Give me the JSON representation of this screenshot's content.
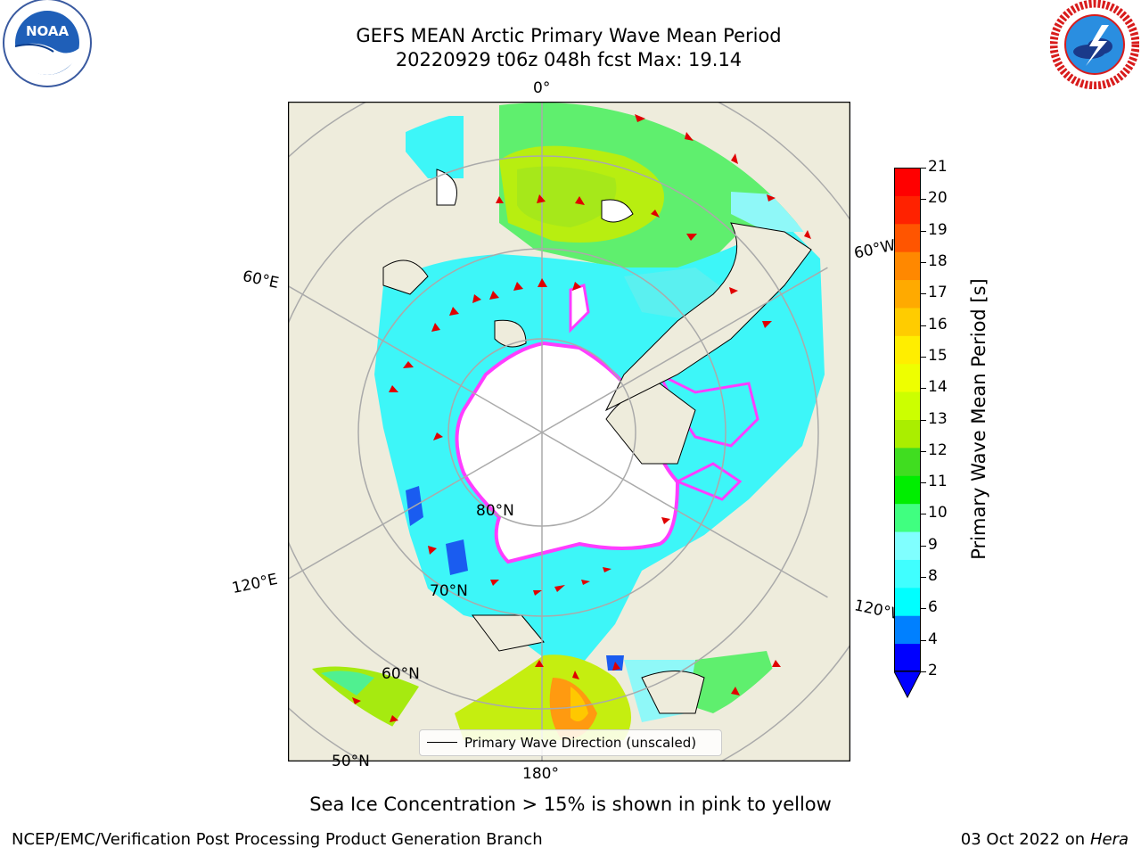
{
  "title": {
    "line1": "GEFS MEAN Arctic Primary Wave Mean Period",
    "line2": "20220929 t06z 048h fcst   Max: 19.14"
  },
  "logos": {
    "left": {
      "name": "NOAA",
      "ring_text": "NATIONAL OCEANIC AND ATMOSPHERIC ADMINISTRATION · U.S. DEPARTMENT OF COMMERCE"
    },
    "right": {
      "ring_text": "NATIONAL WEATHER SERVICE"
    }
  },
  "map": {
    "longitude_labels": [
      "0°",
      "60°W",
      "60°E",
      "120°E",
      "120°W",
      "180°"
    ],
    "latitude_labels": [
      "80°N",
      "70°N",
      "60°N",
      "50°N"
    ],
    "colors": {
      "land": "#eeecdc",
      "ice_interior": "#ffffff",
      "ice_edge": "#ff3dff",
      "arrows": "#e00000",
      "graticule": "#aaaaaa"
    }
  },
  "legend": {
    "label": "Primary Wave Direction (unscaled)"
  },
  "colorbar": {
    "label": "Primary Wave Mean Period [s]",
    "ticks": [
      "21",
      "20",
      "19",
      "18",
      "17",
      "16",
      "15",
      "14",
      "13",
      "12",
      "11",
      "10",
      "9",
      "8",
      "6",
      "4",
      "2"
    ],
    "colors": [
      "#0000ff",
      "#0080ff",
      "#00ffff",
      "#40ffff",
      "#80ffff",
      "#40ff80",
      "#00ee00",
      "#40dd20",
      "#aaee00",
      "#ccff00",
      "#eeff00",
      "#ffee00",
      "#ffcc00",
      "#ffaa00",
      "#ff8800",
      "#ff5500",
      "#ff2200",
      "#ff0000"
    ]
  },
  "note": "Sea Ice Concentration > 15% is shown in pink to yellow",
  "footer": {
    "left": "NCEP/EMC/Verification Post Processing Product Generation Branch",
    "right_date": "03 Oct 2022 on ",
    "right_machine": "Hera"
  }
}
